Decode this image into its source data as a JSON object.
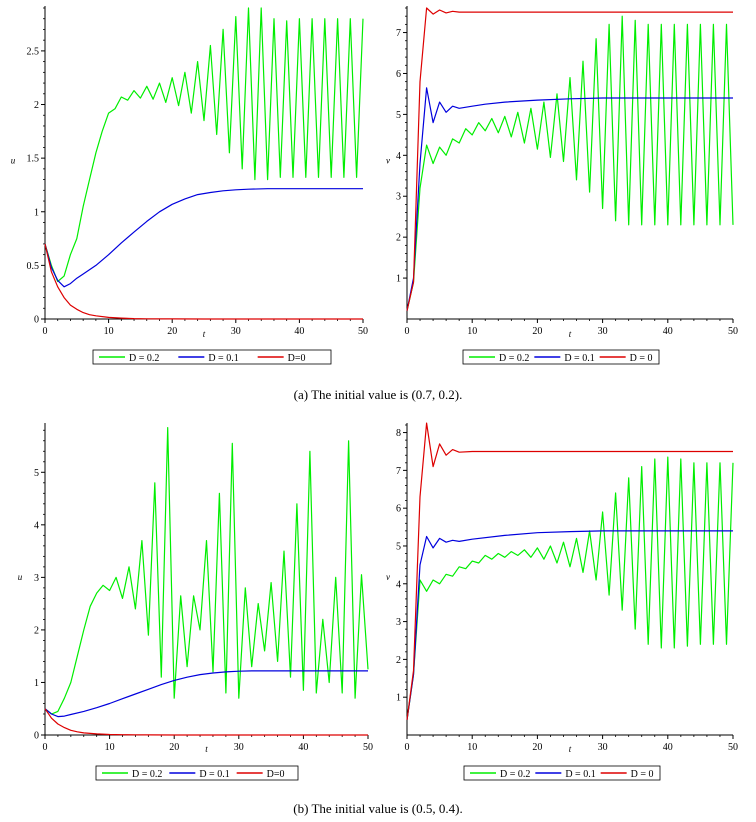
{
  "figure": {
    "caption_a": "(a)  The initial value is (0.7, 0.2).",
    "caption_b": "(b)  The initial value is (0.5, 0.4)."
  },
  "colors": {
    "D02": "#00ee00",
    "D01": "#0000dd",
    "D0": "#dd0000",
    "axis": "#000000"
  },
  "chart_data": [
    {
      "id": "a_u",
      "type": "line",
      "title": "",
      "xlabel": "t",
      "ylabel": "u",
      "xlim": [
        0,
        50
      ],
      "ylim": [
        0,
        2.9
      ],
      "xticks": [
        0,
        10,
        20,
        30,
        40,
        50
      ],
      "xtick_labels": [
        "0",
        "10",
        "20",
        "30",
        "40",
        "50"
      ],
      "yticks": [
        0,
        0.5,
        1,
        1.5,
        2,
        2.5
      ],
      "ytick_labels": [
        "0",
        "0.5",
        "1",
        "1.5",
        "2",
        "2.5"
      ],
      "legend": [
        "D = 0.2",
        "D = 0.1",
        "D=0"
      ],
      "series": [
        {
          "name": "D = 0.2",
          "x": [
            0,
            1,
            2,
            3,
            4,
            5,
            6,
            7,
            8,
            9,
            10,
            11,
            12,
            13,
            14,
            15,
            16,
            17,
            18,
            19,
            20,
            21,
            22,
            23,
            24,
            25,
            26,
            27,
            28,
            29,
            30,
            31,
            32,
            33,
            34,
            35,
            36,
            37,
            38,
            39,
            40,
            41,
            42,
            43,
            44,
            45,
            46,
            47,
            48,
            49,
            50
          ],
          "y": [
            0.7,
            0.5,
            0.35,
            0.4,
            0.6,
            0.75,
            1.05,
            1.3,
            1.55,
            1.75,
            1.92,
            1.96,
            2.07,
            2.04,
            2.13,
            2.06,
            2.17,
            2.05,
            2.2,
            2.02,
            2.25,
            1.99,
            2.3,
            1.92,
            2.4,
            1.85,
            2.55,
            1.72,
            2.7,
            1.55,
            2.82,
            1.4,
            2.9,
            1.3,
            2.9,
            1.3,
            2.8,
            1.32,
            2.78,
            1.32,
            2.8,
            1.32,
            2.8,
            1.32,
            2.8,
            1.32,
            2.8,
            1.32,
            2.8,
            1.32,
            2.8
          ]
        },
        {
          "name": "D = 0.1",
          "x": [
            0,
            1,
            2,
            3,
            4,
            5,
            6,
            8,
            10,
            12,
            14,
            16,
            18,
            20,
            22,
            24,
            26,
            28,
            30,
            32,
            35,
            40,
            45,
            50
          ],
          "y": [
            0.7,
            0.48,
            0.36,
            0.3,
            0.33,
            0.38,
            0.42,
            0.5,
            0.6,
            0.71,
            0.81,
            0.91,
            1.0,
            1.07,
            1.12,
            1.16,
            1.18,
            1.195,
            1.205,
            1.21,
            1.215,
            1.215,
            1.215,
            1.215
          ]
        },
        {
          "name": "D=0",
          "x": [
            0,
            1,
            2,
            3,
            4,
            5,
            6,
            7,
            8,
            10,
            12,
            14,
            16,
            20,
            25,
            30,
            40,
            50
          ],
          "y": [
            0.7,
            0.44,
            0.3,
            0.2,
            0.13,
            0.09,
            0.06,
            0.04,
            0.03,
            0.015,
            0.008,
            0.004,
            0.002,
            0.001,
            0,
            0,
            0,
            0
          ]
        }
      ]
    },
    {
      "id": "a_v",
      "type": "line",
      "title": "",
      "xlabel": "t",
      "ylabel": "v",
      "xlim": [
        0,
        50
      ],
      "ylim": [
        0,
        7.6
      ],
      "xticks": [
        0,
        10,
        20,
        30,
        40,
        50
      ],
      "xtick_labels": [
        "0",
        "10",
        "20",
        "30",
        "40",
        "50"
      ],
      "yticks": [
        1,
        2,
        3,
        4,
        5,
        6,
        7
      ],
      "ytick_labels": [
        "1",
        "2",
        "3",
        "4",
        "5",
        "6",
        "7"
      ],
      "legend": [
        "D = 0.2",
        "D = 0.1",
        "D = 0"
      ],
      "series": [
        {
          "name": "D = 0.2",
          "x": [
            0,
            1,
            2,
            3,
            4,
            5,
            6,
            7,
            8,
            9,
            10,
            11,
            12,
            13,
            14,
            15,
            16,
            17,
            18,
            19,
            20,
            21,
            22,
            23,
            24,
            25,
            26,
            27,
            28,
            29,
            30,
            31,
            32,
            33,
            34,
            35,
            36,
            37,
            38,
            39,
            40,
            41,
            42,
            43,
            44,
            45,
            46,
            47,
            48,
            49,
            50
          ],
          "y": [
            0.2,
            0.9,
            3.2,
            4.25,
            3.8,
            4.2,
            4.0,
            4.4,
            4.3,
            4.65,
            4.5,
            4.8,
            4.6,
            4.9,
            4.55,
            4.95,
            4.45,
            5.05,
            4.3,
            5.15,
            4.15,
            5.3,
            3.95,
            5.5,
            3.85,
            5.9,
            3.4,
            6.3,
            3.1,
            6.85,
            2.7,
            7.2,
            2.4,
            7.4,
            2.3,
            7.3,
            2.3,
            7.2,
            2.3,
            7.2,
            2.3,
            7.2,
            2.3,
            7.2,
            2.3,
            7.2,
            2.3,
            7.2,
            2.3,
            7.2,
            2.3
          ]
        },
        {
          "name": "D = 0.1",
          "x": [
            0,
            1,
            2,
            3,
            4,
            5,
            6,
            7,
            8,
            10,
            12,
            15,
            20,
            25,
            30,
            35,
            40,
            45,
            50
          ],
          "y": [
            0.2,
            1.0,
            3.8,
            5.65,
            4.8,
            5.3,
            5.05,
            5.2,
            5.15,
            5.2,
            5.25,
            5.3,
            5.35,
            5.38,
            5.4,
            5.4,
            5.4,
            5.4,
            5.4
          ]
        },
        {
          "name": "D = 0",
          "x": [
            0,
            1,
            2,
            3,
            4,
            5,
            6,
            7,
            8,
            10,
            15,
            20,
            30,
            40,
            50
          ],
          "y": [
            0.2,
            0.9,
            5.8,
            7.6,
            7.45,
            7.55,
            7.48,
            7.52,
            7.5,
            7.5,
            7.5,
            7.5,
            7.5,
            7.5,
            7.5
          ]
        }
      ]
    },
    {
      "id": "b_u",
      "type": "line",
      "title": "",
      "xlabel": "t",
      "ylabel": "u",
      "xlim": [
        0,
        50
      ],
      "ylim": [
        0,
        5.9
      ],
      "xticks": [
        0,
        10,
        20,
        30,
        40,
        50
      ],
      "xtick_labels": [
        "0",
        "10",
        "20",
        "30",
        "40",
        "50"
      ],
      "yticks": [
        0,
        1,
        2,
        3,
        4,
        5
      ],
      "ytick_labels": [
        "0",
        "1",
        "2",
        "3",
        "4",
        "5"
      ],
      "legend": [
        "D = 0.2",
        "D = 0.1",
        "D=0"
      ],
      "series": [
        {
          "name": "D = 0.2",
          "x": [
            0,
            1,
            2,
            3,
            4,
            5,
            6,
            7,
            8,
            9,
            10,
            11,
            12,
            13,
            14,
            15,
            16,
            17,
            18,
            19,
            20,
            21,
            22,
            23,
            24,
            25,
            26,
            27,
            28,
            29,
            30,
            31,
            32,
            33,
            34,
            35,
            36,
            37,
            38,
            39,
            40,
            41,
            42,
            43,
            44,
            45,
            46,
            47,
            48,
            49,
            50
          ],
          "y": [
            0.5,
            0.4,
            0.45,
            0.7,
            1.0,
            1.5,
            2.0,
            2.45,
            2.7,
            2.85,
            2.75,
            3.0,
            2.6,
            3.2,
            2.4,
            3.7,
            1.9,
            4.8,
            1.1,
            5.85,
            0.7,
            2.65,
            1.3,
            2.65,
            2.0,
            3.7,
            1.2,
            4.6,
            0.8,
            5.55,
            0.7,
            2.8,
            1.3,
            2.5,
            1.6,
            2.9,
            1.4,
            3.5,
            1.1,
            4.4,
            0.85,
            5.4,
            0.8,
            2.2,
            1.0,
            3.0,
            0.8,
            5.6,
            0.7,
            3.05,
            1.25
          ]
        },
        {
          "name": "D = 0.1",
          "x": [
            0,
            1,
            2,
            3,
            4,
            6,
            8,
            10,
            12,
            14,
            16,
            18,
            20,
            22,
            24,
            26,
            28,
            30,
            32,
            35,
            40,
            45,
            50
          ],
          "y": [
            0.5,
            0.4,
            0.35,
            0.36,
            0.39,
            0.45,
            0.52,
            0.6,
            0.69,
            0.78,
            0.87,
            0.96,
            1.04,
            1.1,
            1.15,
            1.18,
            1.2,
            1.215,
            1.22,
            1.22,
            1.22,
            1.22,
            1.22
          ]
        },
        {
          "name": "D=0",
          "x": [
            0,
            1,
            2,
            3,
            4,
            5,
            6,
            7,
            8,
            10,
            12,
            14,
            16,
            20,
            25,
            30,
            40,
            50
          ],
          "y": [
            0.5,
            0.32,
            0.21,
            0.14,
            0.09,
            0.06,
            0.04,
            0.03,
            0.02,
            0.01,
            0.005,
            0.003,
            0.001,
            0,
            0,
            0,
            0,
            0
          ]
        }
      ]
    },
    {
      "id": "b_v",
      "type": "line",
      "title": "",
      "xlabel": "t",
      "ylabel": "v",
      "xlim": [
        0,
        50
      ],
      "ylim": [
        0,
        8.2
      ],
      "xticks": [
        0,
        10,
        20,
        30,
        40,
        50
      ],
      "xtick_labels": [
        "0",
        "10",
        "20",
        "30",
        "40",
        "50"
      ],
      "yticks": [
        1,
        2,
        3,
        4,
        5,
        6,
        7,
        8
      ],
      "ytick_labels": [
        "1",
        "2",
        "3",
        "4",
        "5",
        "6",
        "7",
        "8"
      ],
      "legend": [
        "D = 0.2",
        "D = 0.1",
        "D = 0"
      ],
      "series": [
        {
          "name": "D = 0.2",
          "x": [
            0,
            1,
            2,
            3,
            4,
            5,
            6,
            7,
            8,
            9,
            10,
            11,
            12,
            13,
            14,
            15,
            16,
            17,
            18,
            19,
            20,
            21,
            22,
            23,
            24,
            25,
            26,
            27,
            28,
            29,
            30,
            31,
            32,
            33,
            34,
            35,
            36,
            37,
            38,
            39,
            40,
            41,
            42,
            43,
            44,
            45,
            46,
            47,
            48,
            49,
            50
          ],
          "y": [
            0.4,
            1.6,
            4.1,
            3.8,
            4.1,
            4.0,
            4.25,
            4.2,
            4.45,
            4.4,
            4.6,
            4.55,
            4.75,
            4.65,
            4.8,
            4.7,
            4.85,
            4.75,
            4.9,
            4.7,
            4.95,
            4.65,
            5.0,
            4.55,
            5.1,
            4.45,
            5.2,
            4.3,
            5.4,
            4.1,
            5.9,
            3.7,
            6.4,
            3.3,
            6.8,
            2.8,
            7.1,
            2.4,
            7.3,
            2.3,
            7.35,
            2.3,
            7.3,
            2.35,
            7.2,
            2.4,
            7.2,
            2.4,
            7.2,
            2.4,
            7.2
          ]
        },
        {
          "name": "D = 0.1",
          "x": [
            0,
            1,
            2,
            3,
            4,
            5,
            6,
            7,
            8,
            10,
            15,
            20,
            25,
            30,
            35,
            40,
            45,
            50
          ],
          "y": [
            0.4,
            1.6,
            4.5,
            5.25,
            4.95,
            5.2,
            5.1,
            5.15,
            5.12,
            5.18,
            5.28,
            5.35,
            5.38,
            5.4,
            5.4,
            5.4,
            5.4,
            5.4
          ]
        },
        {
          "name": "D = 0",
          "x": [
            0,
            1,
            2,
            3,
            4,
            5,
            6,
            7,
            8,
            10,
            15,
            20,
            30,
            40,
            50
          ],
          "y": [
            0.4,
            1.7,
            6.3,
            8.25,
            7.1,
            7.7,
            7.4,
            7.55,
            7.48,
            7.5,
            7.5,
            7.5,
            7.5,
            7.5,
            7.5
          ]
        }
      ]
    }
  ]
}
